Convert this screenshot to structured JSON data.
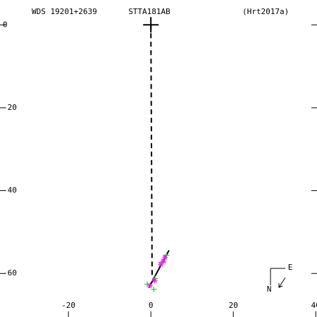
{
  "chart_data": {
    "type": "scatter",
    "title_left": "WDS 19201+2639",
    "title": "STTA181AB",
    "title_right": "(Hrt2017a)",
    "xlim": [
      -36.6,
      40.3
    ],
    "ylim": [
      -70.5,
      6
    ],
    "xticks": [
      -20,
      0,
      20,
      40
    ],
    "yticks": [
      0,
      -20,
      -40,
      -60
    ],
    "primary": {
      "x": 0,
      "y": 0,
      "color": "#000000"
    },
    "lines": [
      {
        "x": [
          0,
          0.3
        ],
        "y": [
          0,
          -61
        ],
        "color": "#000000",
        "dash": true
      },
      {
        "x": [
          -0.5,
          4.4
        ],
        "y": [
          -63.4,
          -54.4
        ],
        "color": "#000000",
        "dash": false
      }
    ],
    "series": [
      {
        "marker": "plus",
        "color": "#33cc33",
        "x": [
          -0.9,
          0.7,
          1,
          2.7,
          3.8
        ],
        "y": [
          -62.6,
          -63.8,
          -61.2,
          -57.3,
          -55.6
        ]
      },
      {
        "marker": "star",
        "color": "#ee22ee",
        "x": [
          -0.2,
          0.9,
          2.4,
          3.4,
          3.1
        ],
        "y": [
          -62.9,
          -61.7,
          -57.8,
          -56.1,
          -57
        ]
      }
    ],
    "compass": {
      "north": "N",
      "east": "E"
    }
  }
}
